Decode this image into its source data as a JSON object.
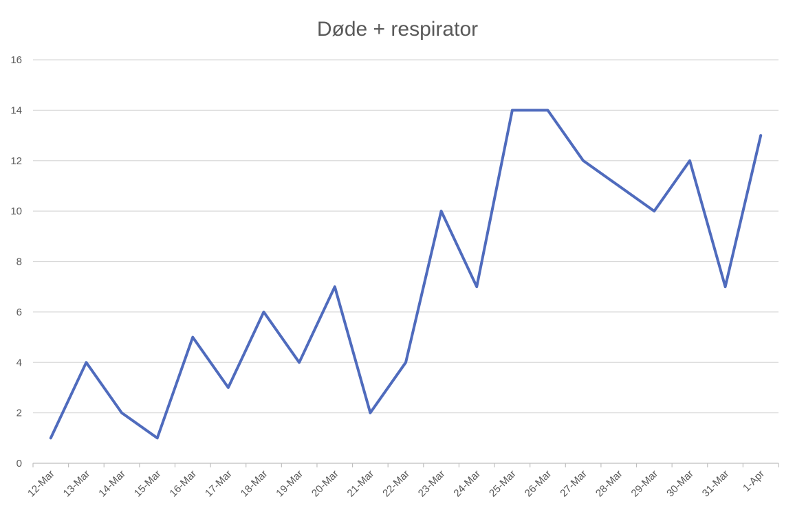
{
  "chart_data": {
    "type": "line",
    "title": "Døde  + respirator",
    "xlabel": "",
    "ylabel": "",
    "categories": [
      "12-Mar",
      "13-Mar",
      "14-Mar",
      "15-Mar",
      "16-Mar",
      "17-Mar",
      "18-Mar",
      "19-Mar",
      "20-Mar",
      "21-Mar",
      "22-Mar",
      "23-Mar",
      "24-Mar",
      "25-Mar",
      "26-Mar",
      "27-Mar",
      "28-Mar",
      "29-Mar",
      "30-Mar",
      "31-Mar",
      "1-Apr"
    ],
    "series": [
      {
        "values": [
          1,
          4,
          2,
          1,
          5,
          3,
          6,
          4,
          7,
          2,
          4,
          10,
          7,
          14,
          14,
          12,
          11,
          10,
          12,
          7,
          13
        ],
        "color": "#4f6bbd"
      }
    ],
    "ylim": [
      0,
      16
    ],
    "yticks": [
      "0",
      "2",
      "4",
      "6",
      "8",
      "10",
      "12",
      "14",
      "16"
    ],
    "grid": true,
    "legend": "none"
  }
}
